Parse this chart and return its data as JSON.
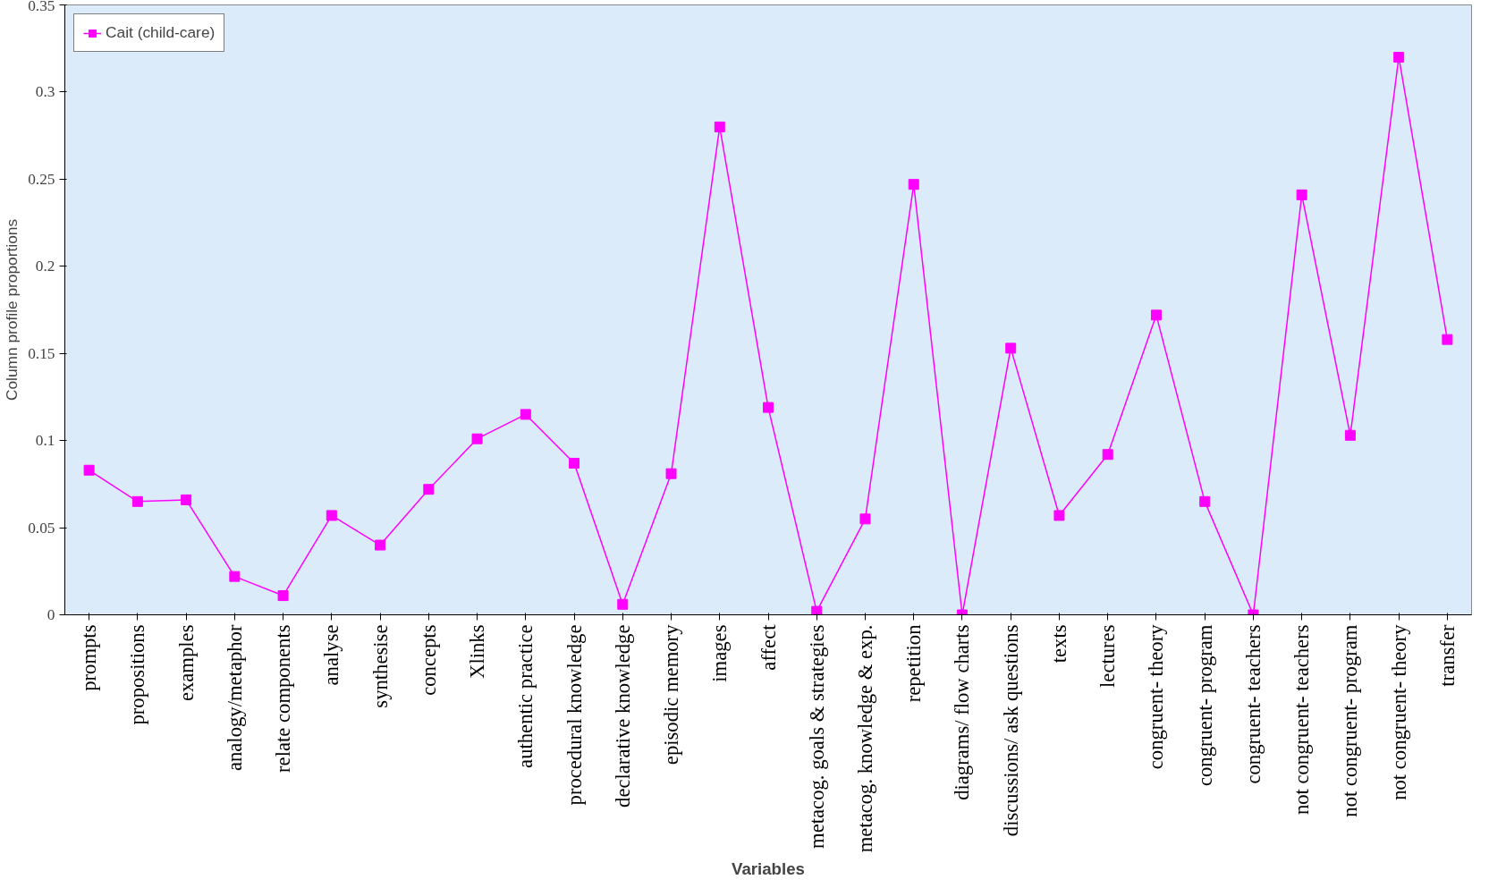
{
  "chart_data": {
    "type": "line",
    "xlabel": "Variables",
    "ylabel": "Column profile proportions",
    "categories": [
      "prompts",
      "propositions",
      "examples",
      "analogy/metaphor",
      "relate components",
      "analyse",
      "synthesise",
      "concepts",
      "Xlinks",
      "authentic practice",
      "procedural knowledge",
      "declarative knowledge",
      "episodic memory",
      "images",
      "affect",
      "metacog. goals & strategies",
      "metacog. knowledge & exp.",
      "repetition",
      "diagrams/ flow charts",
      "discussions/ ask questions",
      "texts",
      "lectures",
      "congruent- theory",
      "congruent- program",
      "congruent- teachers",
      "not congruent- teachers",
      "not congruent- program",
      "not congruent- theory",
      "transfer"
    ],
    "series": [
      {
        "name": "Cait (child-care)",
        "color": "#ff00ff",
        "values": [
          0.083,
          0.065,
          0.066,
          0.022,
          0.011,
          0.057,
          0.04,
          0.072,
          0.101,
          0.115,
          0.087,
          0.006,
          0.081,
          0.28,
          0.119,
          0.002,
          0.055,
          0.247,
          0,
          0.153,
          0.057,
          0.092,
          0.172,
          0.065,
          0,
          0.241,
          0.103,
          0.32,
          0.158
        ]
      }
    ],
    "ylim": [
      0,
      0.35
    ],
    "yticks": [
      0,
      0.05,
      0.1,
      0.15,
      0.2,
      0.25,
      0.3,
      0.35
    ],
    "grid": false,
    "legend": "top left",
    "marker": "square",
    "line_style": "solid"
  }
}
